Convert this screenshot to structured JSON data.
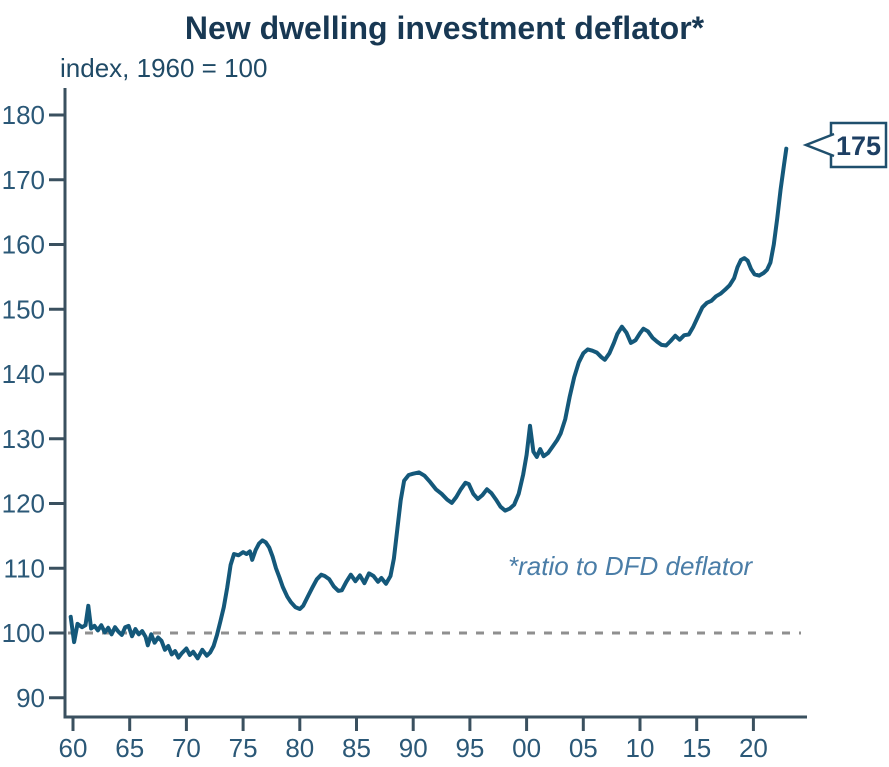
{
  "chart_data": {
    "type": "line",
    "title": "New dwelling investment deflator*",
    "subtitle": "index, 1960 = 100",
    "annotation": "*ratio to DFD deflator",
    "end_label": "175",
    "legend_position": "none",
    "grid": false,
    "y_axis": {
      "ticks": [
        180,
        170,
        160,
        150,
        140,
        130,
        120,
        110,
        100,
        90
      ],
      "ylim": [
        90,
        180
      ]
    },
    "x_axis": {
      "tick_labels": [
        "60",
        "65",
        "70",
        "75",
        "80",
        "85",
        "90",
        "95",
        "00",
        "05",
        "10",
        "15",
        "20"
      ],
      "tick_years": [
        1960,
        1965,
        1970,
        1975,
        1980,
        1985,
        1990,
        1995,
        2000,
        2005,
        2010,
        2015,
        2020
      ]
    },
    "reference_line": 100,
    "colors": {
      "line": "#14587a",
      "title": "#183853",
      "labels": "#2b5877",
      "axis": "#3a505f",
      "annotation": "#4a7da7",
      "dashed": "#8f8f8f",
      "callout_border": "#1f4f6d",
      "callout_text": "#1d3f63"
    },
    "series": [
      {
        "name": "New dwelling investment deflator (ratio to DFD deflator)",
        "points": [
          [
            1959.8,
            102.5
          ],
          [
            1960.1,
            98.6
          ],
          [
            1960.4,
            101.4
          ],
          [
            1960.8,
            100.9
          ],
          [
            1961.1,
            101.2
          ],
          [
            1961.35,
            104.2
          ],
          [
            1961.6,
            100.7
          ],
          [
            1961.9,
            101.1
          ],
          [
            1962.2,
            100.4
          ],
          [
            1962.5,
            101.2
          ],
          [
            1962.8,
            100.1
          ],
          [
            1963.1,
            100.8
          ],
          [
            1963.4,
            99.8
          ],
          [
            1963.7,
            100.9
          ],
          [
            1964.0,
            100.2
          ],
          [
            1964.3,
            99.7
          ],
          [
            1964.6,
            100.9
          ],
          [
            1964.9,
            101.1
          ],
          [
            1965.2,
            99.5
          ],
          [
            1965.5,
            100.6
          ],
          [
            1965.8,
            99.8
          ],
          [
            1966.1,
            100.3
          ],
          [
            1966.4,
            99.4
          ],
          [
            1966.6,
            98.1
          ],
          [
            1966.9,
            99.8
          ],
          [
            1967.2,
            98.5
          ],
          [
            1967.5,
            99.3
          ],
          [
            1967.8,
            98.8
          ],
          [
            1968.1,
            97.4
          ],
          [
            1968.4,
            98.0
          ],
          [
            1968.7,
            96.7
          ],
          [
            1969.0,
            97.2
          ],
          [
            1969.3,
            96.2
          ],
          [
            1969.6,
            96.9
          ],
          [
            1970.0,
            97.6
          ],
          [
            1970.3,
            96.6
          ],
          [
            1970.6,
            97.1
          ],
          [
            1971.0,
            96.1
          ],
          [
            1971.4,
            97.4
          ],
          [
            1971.8,
            96.5
          ],
          [
            1972.1,
            97.0
          ],
          [
            1972.4,
            98.0
          ],
          [
            1972.7,
            99.7
          ],
          [
            1973.0,
            101.8
          ],
          [
            1973.3,
            104.0
          ],
          [
            1973.6,
            107.0
          ],
          [
            1973.9,
            110.5
          ],
          [
            1974.2,
            112.2
          ],
          [
            1974.6,
            112.0
          ],
          [
            1975.0,
            112.5
          ],
          [
            1975.3,
            112.2
          ],
          [
            1975.6,
            112.6
          ],
          [
            1975.8,
            111.3
          ],
          [
            1976.1,
            112.8
          ],
          [
            1976.4,
            113.8
          ],
          [
            1976.7,
            114.3
          ],
          [
            1977.0,
            114.0
          ],
          [
            1977.3,
            113.2
          ],
          [
            1977.6,
            111.8
          ],
          [
            1977.9,
            110.0
          ],
          [
            1978.2,
            108.6
          ],
          [
            1978.5,
            107.1
          ],
          [
            1978.9,
            105.6
          ],
          [
            1979.2,
            104.8
          ],
          [
            1979.6,
            104.0
          ],
          [
            1980.0,
            103.7
          ],
          [
            1980.3,
            104.2
          ],
          [
            1980.7,
            105.6
          ],
          [
            1981.1,
            107.0
          ],
          [
            1981.5,
            108.3
          ],
          [
            1981.9,
            109.0
          ],
          [
            1982.2,
            108.8
          ],
          [
            1982.6,
            108.3
          ],
          [
            1983.0,
            107.2
          ],
          [
            1983.4,
            106.5
          ],
          [
            1983.7,
            106.6
          ],
          [
            1984.1,
            107.9
          ],
          [
            1984.5,
            109.0
          ],
          [
            1984.9,
            108.0
          ],
          [
            1985.3,
            108.9
          ],
          [
            1985.7,
            107.7
          ],
          [
            1986.1,
            109.2
          ],
          [
            1986.5,
            108.8
          ],
          [
            1986.9,
            107.9
          ],
          [
            1987.2,
            108.5
          ],
          [
            1987.6,
            107.6
          ],
          [
            1988.0,
            108.8
          ],
          [
            1988.3,
            111.5
          ],
          [
            1988.6,
            116.0
          ],
          [
            1988.9,
            120.5
          ],
          [
            1989.2,
            123.5
          ],
          [
            1989.6,
            124.4
          ],
          [
            1990.0,
            124.6
          ],
          [
            1990.5,
            124.8
          ],
          [
            1991.0,
            124.3
          ],
          [
            1991.5,
            123.3
          ],
          [
            1992.0,
            122.2
          ],
          [
            1992.5,
            121.5
          ],
          [
            1993.0,
            120.6
          ],
          [
            1993.4,
            120.1
          ],
          [
            1993.8,
            121.0
          ],
          [
            1994.2,
            122.2
          ],
          [
            1994.6,
            123.2
          ],
          [
            1994.9,
            123.0
          ],
          [
            1995.3,
            121.5
          ],
          [
            1995.7,
            120.7
          ],
          [
            1996.1,
            121.3
          ],
          [
            1996.5,
            122.2
          ],
          [
            1996.9,
            121.6
          ],
          [
            1997.3,
            120.6
          ],
          [
            1997.7,
            119.5
          ],
          [
            1998.1,
            118.9
          ],
          [
            1998.5,
            119.2
          ],
          [
            1998.9,
            119.8
          ],
          [
            1999.3,
            121.5
          ],
          [
            1999.7,
            124.5
          ],
          [
            2000.0,
            127.5
          ],
          [
            2000.3,
            132.0
          ],
          [
            2000.6,
            128.0
          ],
          [
            2000.9,
            127.2
          ],
          [
            2001.2,
            128.4
          ],
          [
            2001.5,
            127.3
          ],
          [
            2001.9,
            127.8
          ],
          [
            2002.3,
            128.8
          ],
          [
            2002.7,
            129.8
          ],
          [
            2003.0,
            130.8
          ],
          [
            2003.4,
            133.0
          ],
          [
            2003.8,
            136.5
          ],
          [
            2004.2,
            139.5
          ],
          [
            2004.6,
            141.8
          ],
          [
            2005.0,
            143.2
          ],
          [
            2005.4,
            143.8
          ],
          [
            2005.8,
            143.6
          ],
          [
            2006.2,
            143.3
          ],
          [
            2006.6,
            142.6
          ],
          [
            2006.9,
            142.2
          ],
          [
            2007.3,
            143.2
          ],
          [
            2007.7,
            144.8
          ],
          [
            2008.0,
            146.2
          ],
          [
            2008.4,
            147.3
          ],
          [
            2008.8,
            146.4
          ],
          [
            2009.2,
            144.8
          ],
          [
            2009.6,
            145.2
          ],
          [
            2010.0,
            146.3
          ],
          [
            2010.3,
            147.0
          ],
          [
            2010.7,
            146.6
          ],
          [
            2011.1,
            145.6
          ],
          [
            2011.5,
            145.0
          ],
          [
            2011.9,
            144.5
          ],
          [
            2012.3,
            144.4
          ],
          [
            2012.7,
            145.1
          ],
          [
            2013.1,
            145.9
          ],
          [
            2013.5,
            145.3
          ],
          [
            2013.9,
            146.0
          ],
          [
            2014.3,
            146.1
          ],
          [
            2014.7,
            147.3
          ],
          [
            2015.1,
            148.8
          ],
          [
            2015.5,
            150.3
          ],
          [
            2015.9,
            151.0
          ],
          [
            2016.3,
            151.3
          ],
          [
            2016.7,
            152.0
          ],
          [
            2017.1,
            152.4
          ],
          [
            2017.5,
            153.0
          ],
          [
            2017.9,
            153.7
          ],
          [
            2018.3,
            154.8
          ],
          [
            2018.6,
            156.5
          ],
          [
            2018.9,
            157.6
          ],
          [
            2019.2,
            157.9
          ],
          [
            2019.5,
            157.5
          ],
          [
            2019.8,
            156.2
          ],
          [
            2020.1,
            155.4
          ],
          [
            2020.5,
            155.2
          ],
          [
            2020.9,
            155.6
          ],
          [
            2021.2,
            156.1
          ],
          [
            2021.5,
            157.2
          ],
          [
            2021.8,
            160.0
          ],
          [
            2022.1,
            164.0
          ],
          [
            2022.4,
            168.5
          ],
          [
            2022.7,
            172.3
          ],
          [
            2022.9,
            174.8
          ]
        ]
      }
    ]
  }
}
